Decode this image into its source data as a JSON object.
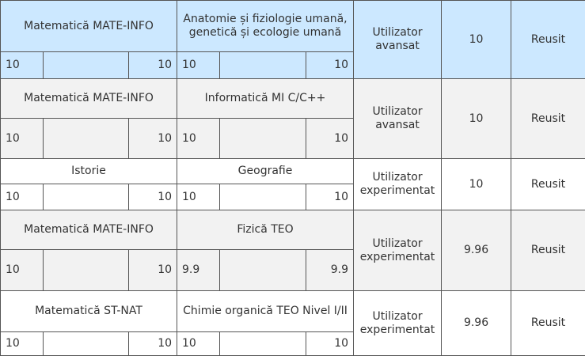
{
  "rows": [
    {
      "subject1": "Matematică MATE-INFO",
      "subject2": "Anatomie și fiziologie umană, genetică și ecologie umană",
      "s1_a": "10",
      "s1_b": "10",
      "s2_a": "10",
      "s2_b": "10",
      "level": "Utilizator avansat",
      "average": "10",
      "result": "Reusit"
    },
    {
      "subject1": "Matematică MATE-INFO",
      "subject2": "Informatică MI C/C++",
      "s1_a": "10",
      "s1_b": "10",
      "s2_a": "10",
      "s2_b": "10",
      "level": "Utilizator avansat",
      "average": "10",
      "result": "Reusit"
    },
    {
      "subject1": "Istorie",
      "subject2": "Geografie",
      "s1_a": "10",
      "s1_b": "10",
      "s2_a": "10",
      "s2_b": "10",
      "level": "Utilizator experimentat",
      "average": "10",
      "result": "Reusit"
    },
    {
      "subject1": "Matematică MATE-INFO",
      "subject2": "Fizică TEO",
      "s1_a": "10",
      "s1_b": "10",
      "s2_a": "9.9",
      "s2_b": "9.9",
      "level": "Utilizator experimentat",
      "average": "9.96",
      "result": "Reusit"
    },
    {
      "subject1": "Matematică ST-NAT",
      "subject2": "Chimie organică TEO Nivel I/II",
      "s1_a": "10",
      "s1_b": "10",
      "s2_a": "10",
      "s2_b": "10",
      "level": "Utilizator experimentat",
      "average": "9.96",
      "result": "Reusit"
    }
  ],
  "colors": {
    "row_highlight": "#cce8ff",
    "row_alt": "#f2f2f2",
    "row_plain": "#ffffff",
    "border": "#555555"
  }
}
